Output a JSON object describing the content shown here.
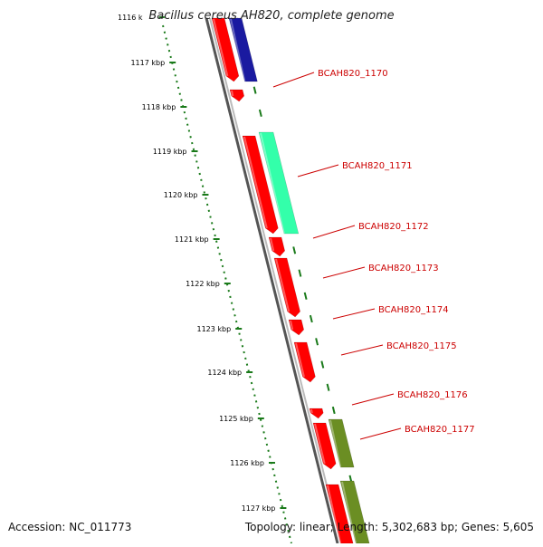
{
  "title": "Bacillus cereus AH820, complete genome",
  "accession": "Accession: NC_011773",
  "summary": "Topology: linear; Length: 5,302,683 bp; Genes: 5,605",
  "ruler": {
    "first_label": "1116 k",
    "labels": [
      "1117 kbp",
      "1118 kbp",
      "1119 kbp",
      "1120 kbp",
      "1121 kbp",
      "1122 kbp",
      "1123 kbp",
      "1124 kbp",
      "1125 kbp",
      "1126 kbp",
      "1127 kbp"
    ]
  },
  "genes": [
    {
      "label": "BCAH820_1170"
    },
    {
      "label": "BCAH820_1171"
    },
    {
      "label": "BCAH820_1172"
    },
    {
      "label": "BCAH820_1173"
    },
    {
      "label": "BCAH820_1174"
    },
    {
      "label": "BCAH820_1175"
    },
    {
      "label": "BCAH820_1176"
    },
    {
      "label": "BCAH820_1177"
    }
  ],
  "colors": {
    "gene": "#ff0000",
    "cds_blue": "#1a1aa0",
    "cds_teal": "#33ffaa",
    "cds_olive": "#6b8e23",
    "ruler": "#1a7a1a",
    "backbone": "#888888",
    "label": "#cc0000"
  }
}
